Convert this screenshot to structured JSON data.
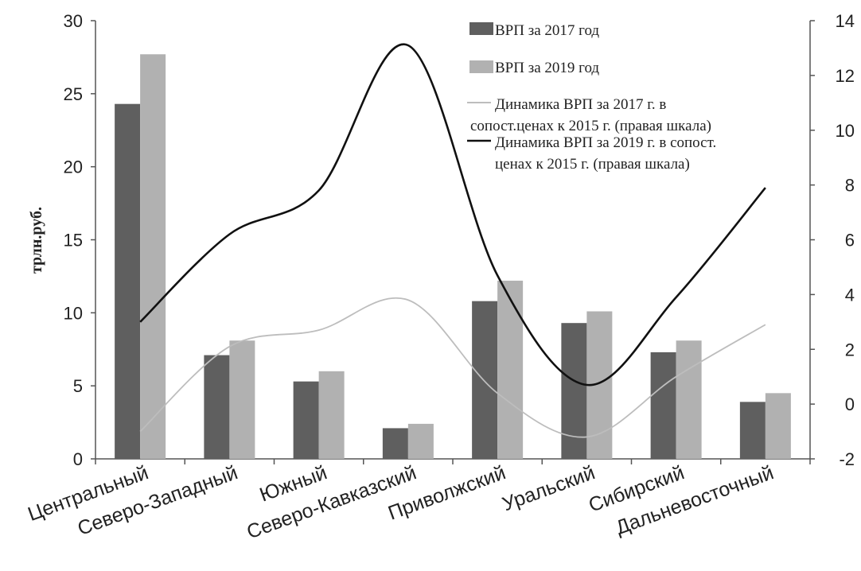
{
  "chart_data": {
    "type": "bar",
    "ylabel": "трлн.руб.",
    "ylim": [
      0,
      30
    ],
    "y_ticks": [
      "0",
      "5",
      "10",
      "15",
      "20",
      "25",
      "30"
    ],
    "y2lim": [
      -2,
      14
    ],
    "y2_ticks": [
      "-2",
      "0",
      "2",
      "4",
      "6",
      "8",
      "10",
      "12",
      "14"
    ],
    "categories": [
      "Центральный",
      "Северо-Западный",
      "Южный",
      "Северо-Кавказский",
      "Приволжский",
      "Уральский",
      "Сибирский",
      "Дальневосточный"
    ],
    "series": [
      {
        "name": "ВРП за 2017 год",
        "kind": "bar",
        "axis": "left",
        "color": "#5f5f5f",
        "values": [
          24.3,
          7.1,
          5.3,
          2.1,
          10.8,
          9.3,
          7.3,
          3.9
        ]
      },
      {
        "name": "ВРП за 2019 год",
        "kind": "bar",
        "axis": "left",
        "color": "#b1b1b1",
        "values": [
          27.7,
          8.1,
          6.0,
          2.4,
          12.2,
          10.1,
          8.1,
          4.5
        ]
      },
      {
        "name_lines": [
          "Динамика ВРП за 2017 г. в",
          "сопост.ценах  к 2015 г. (правая шкала)"
        ],
        "kind": "line",
        "axis": "right",
        "color": "#bdbdbd",
        "values": [
          -1.0,
          2.1,
          2.7,
          3.8,
          0.4,
          -1.2,
          1.0,
          2.9
        ]
      },
      {
        "name_lines": [
          "Динамика ВРП за 2019 г. в сопост.",
          "ценах к 2015 г. (правая шкала)"
        ],
        "kind": "line",
        "axis": "right",
        "color": "#111111",
        "values": [
          3.0,
          6.2,
          7.8,
          13.1,
          4.7,
          0.7,
          3.9,
          7.9
        ]
      }
    ],
    "grid": false,
    "legend": "top-right"
  }
}
